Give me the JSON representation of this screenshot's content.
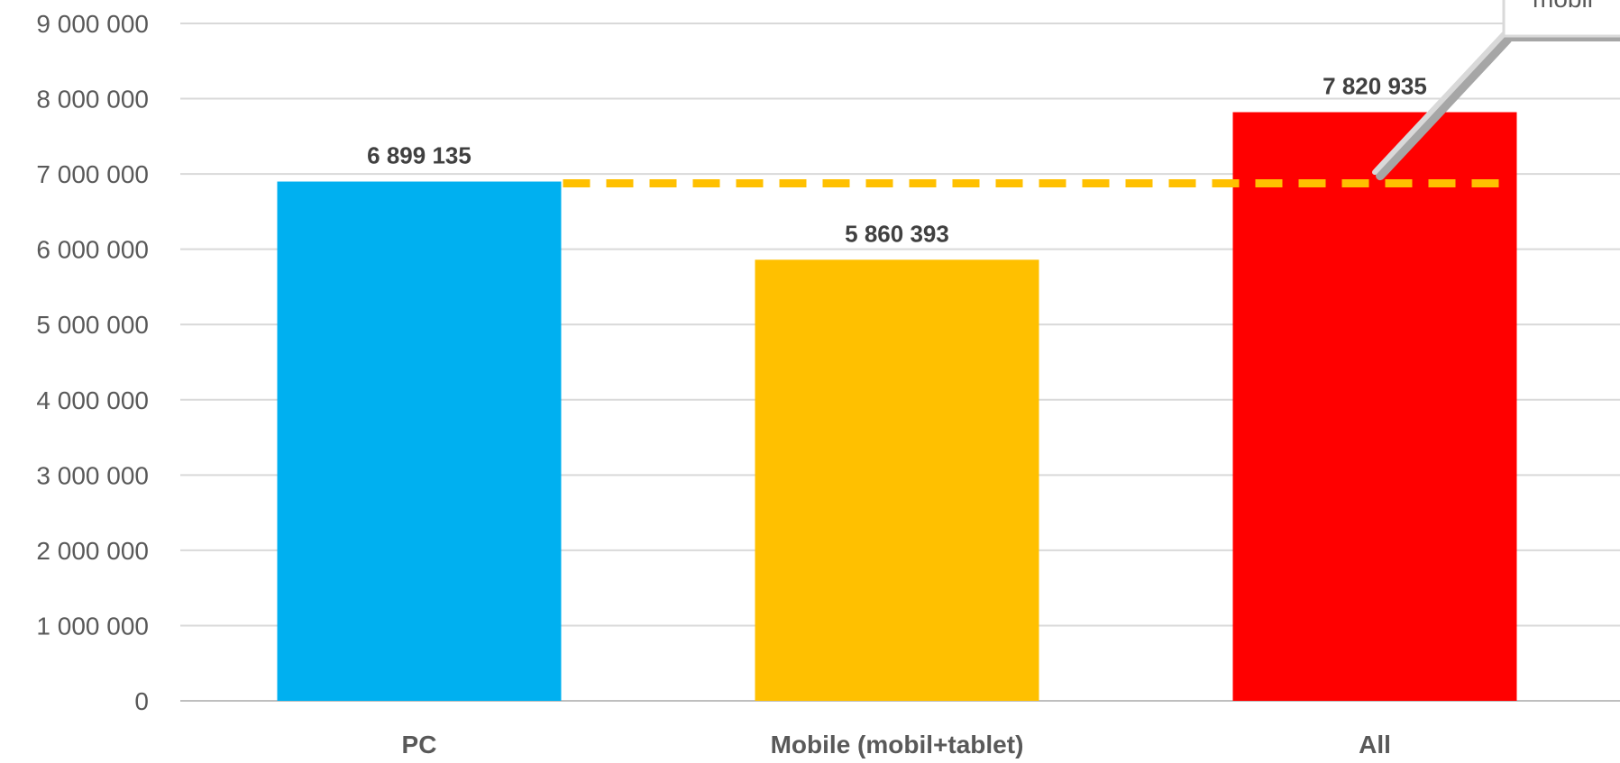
{
  "chart_data": {
    "type": "bar",
    "title": "",
    "xlabel": "",
    "ylabel": "",
    "categories": [
      "PC",
      "Mobile (mobil+tablet)",
      "All"
    ],
    "values": [
      6899135,
      5860393,
      7820935
    ],
    "data_labels": [
      "6 899 135",
      "5 860 393",
      "7 820 935"
    ],
    "colors": [
      "#00b0f0",
      "#ffc000",
      "#ff0000"
    ],
    "ylim": [
      0,
      9000000
    ],
    "yticks": [
      0,
      1000000,
      2000000,
      3000000,
      4000000,
      5000000,
      6000000,
      7000000,
      8000000,
      9000000
    ],
    "ytick_labels": [
      "0",
      "1 000 000",
      "2 000 000",
      "3 000 000",
      "4 000 000",
      "5 000 000",
      "6 000 000",
      "7 000 000",
      "8 000 000",
      "9 000 000"
    ],
    "grid": true,
    "reference_line": {
      "value": 6899135,
      "from_category": 0,
      "to_category": 2,
      "style": "dashed",
      "color": "#ffc000"
    },
    "callout": {
      "text": "mobil",
      "anchor_category": 2,
      "anchor_value": 7000000,
      "placement": "top-right (clipped)"
    }
  }
}
